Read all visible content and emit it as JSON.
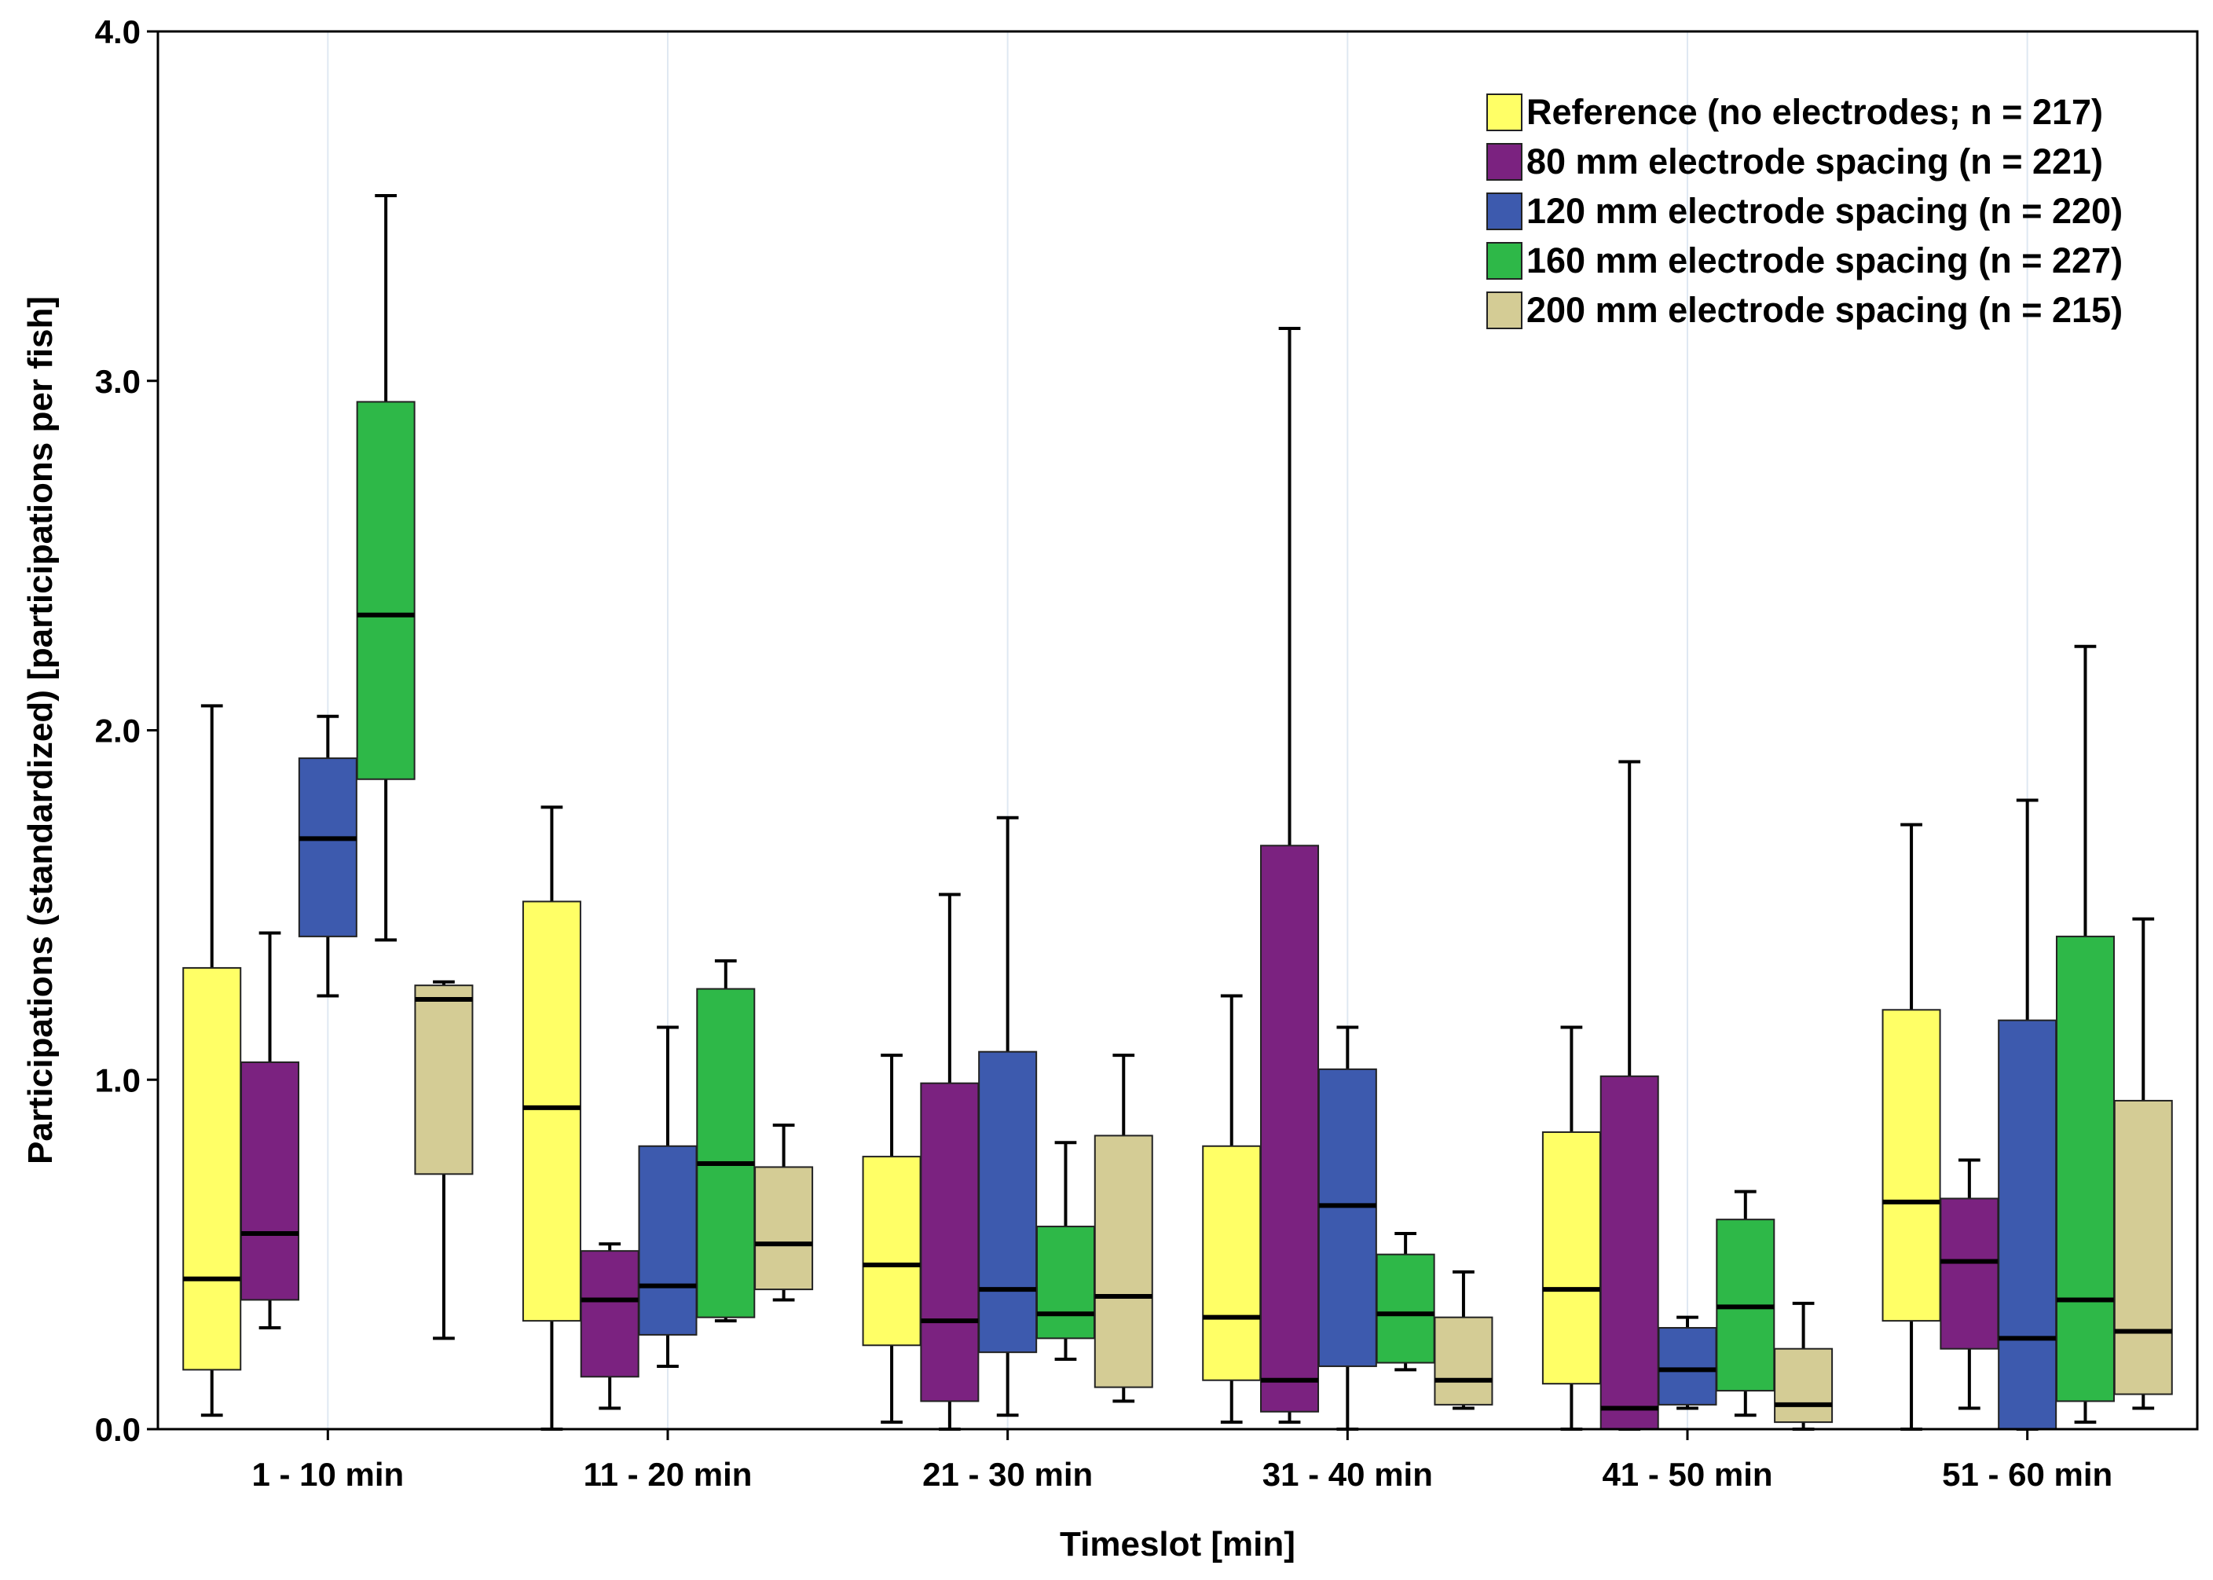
{
  "chart_data": {
    "type": "boxplot",
    "title": "",
    "xlabel": "Timeslot [min]",
    "ylabel": "Participations (standardized) [participations per fish]",
    "ylim": [
      0,
      4
    ],
    "y_ticks": [
      "0.0",
      "1.0",
      "2.0",
      "3.0",
      "4.0"
    ],
    "grid": "vertical",
    "legend_position": "top-right",
    "categories": [
      "1 - 10 min",
      "11 - 20 min",
      "21 - 30 min",
      "31 - 40 min",
      "41 - 50 min",
      "51 - 60 min"
    ],
    "series": [
      {
        "name": "Reference (no electrodes; n = 217)",
        "color": "#FFFF66",
        "boxes": [
          {
            "min": 0.04,
            "q1": 0.17,
            "median": 0.43,
            "q3": 1.32,
            "max": 2.07
          },
          {
            "min": 0.0,
            "q1": 0.31,
            "median": 0.92,
            "q3": 1.51,
            "max": 1.78
          },
          {
            "min": 0.02,
            "q1": 0.24,
            "median": 0.47,
            "q3": 0.78,
            "max": 1.07
          },
          {
            "min": 0.02,
            "q1": 0.14,
            "median": 0.32,
            "q3": 0.81,
            "max": 1.24
          },
          {
            "min": 0.0,
            "q1": 0.13,
            "median": 0.4,
            "q3": 0.85,
            "max": 1.15
          },
          {
            "min": 0.0,
            "q1": 0.31,
            "median": 0.65,
            "q3": 1.2,
            "max": 1.73
          }
        ]
      },
      {
        "name": "80 mm electrode spacing (n = 221)",
        "color": "#7B2280",
        "boxes": [
          {
            "min": 0.29,
            "q1": 0.37,
            "median": 0.56,
            "q3": 1.05,
            "max": 1.42
          },
          {
            "min": 0.06,
            "q1": 0.15,
            "median": 0.37,
            "q3": 0.51,
            "max": 0.53
          },
          {
            "min": 0.0,
            "q1": 0.08,
            "median": 0.31,
            "q3": 0.99,
            "max": 1.53
          },
          {
            "min": 0.02,
            "q1": 0.05,
            "median": 0.14,
            "q3": 1.67,
            "max": 3.15
          },
          {
            "min": 0.0,
            "q1": 0.0,
            "median": 0.06,
            "q3": 1.01,
            "max": 1.91
          },
          {
            "min": 0.06,
            "q1": 0.23,
            "median": 0.48,
            "q3": 0.66,
            "max": 0.77
          }
        ]
      },
      {
        "name": "120 mm electrode spacing (n = 220)",
        "color": "#3D5AAE",
        "boxes": [
          {
            "min": 1.24,
            "q1": 1.41,
            "median": 1.69,
            "q3": 1.92,
            "max": 2.04
          },
          {
            "min": 0.18,
            "q1": 0.27,
            "median": 0.41,
            "q3": 0.81,
            "max": 1.15
          },
          {
            "min": 0.04,
            "q1": 0.22,
            "median": 0.4,
            "q3": 1.08,
            "max": 1.75
          },
          {
            "min": 0.0,
            "q1": 0.18,
            "median": 0.64,
            "q3": 1.03,
            "max": 1.15
          },
          {
            "min": 0.06,
            "q1": 0.07,
            "median": 0.17,
            "q3": 0.29,
            "max": 0.32
          },
          {
            "min": 0.0,
            "q1": 0.0,
            "median": 0.26,
            "q3": 1.17,
            "max": 1.8
          }
        ]
      },
      {
        "name": "160 mm electrode spacing (n = 227)",
        "color": "#2EB848",
        "boxes": [
          {
            "min": 1.4,
            "q1": 1.86,
            "median": 2.33,
            "q3": 2.94,
            "max": 3.53
          },
          {
            "min": 0.31,
            "q1": 0.32,
            "median": 0.76,
            "q3": 1.26,
            "max": 1.34
          },
          {
            "min": 0.2,
            "q1": 0.26,
            "median": 0.33,
            "q3": 0.58,
            "max": 0.82
          },
          {
            "min": 0.17,
            "q1": 0.19,
            "median": 0.33,
            "q3": 0.5,
            "max": 0.56
          },
          {
            "min": 0.04,
            "q1": 0.11,
            "median": 0.35,
            "q3": 0.6,
            "max": 0.68
          },
          {
            "min": 0.02,
            "q1": 0.08,
            "median": 0.37,
            "q3": 1.41,
            "max": 2.24
          }
        ]
      },
      {
        "name": "200 mm electrode spacing (n = 215)",
        "color": "#D4CC95",
        "boxes": [
          {
            "min": 0.26,
            "q1": 0.73,
            "median": 1.23,
            "q3": 1.27,
            "max": 1.28
          },
          {
            "min": 0.37,
            "q1": 0.4,
            "median": 0.53,
            "q3": 0.75,
            "max": 0.87
          },
          {
            "min": 0.08,
            "q1": 0.12,
            "median": 0.38,
            "q3": 0.84,
            "max": 1.07
          },
          {
            "min": 0.06,
            "q1": 0.07,
            "median": 0.14,
            "q3": 0.32,
            "max": 0.45
          },
          {
            "min": 0.0,
            "q1": 0.02,
            "median": 0.07,
            "q3": 0.23,
            "max": 0.36
          },
          {
            "min": 0.06,
            "q1": 0.1,
            "median": 0.28,
            "q3": 0.94,
            "max": 1.46
          }
        ]
      }
    ]
  }
}
